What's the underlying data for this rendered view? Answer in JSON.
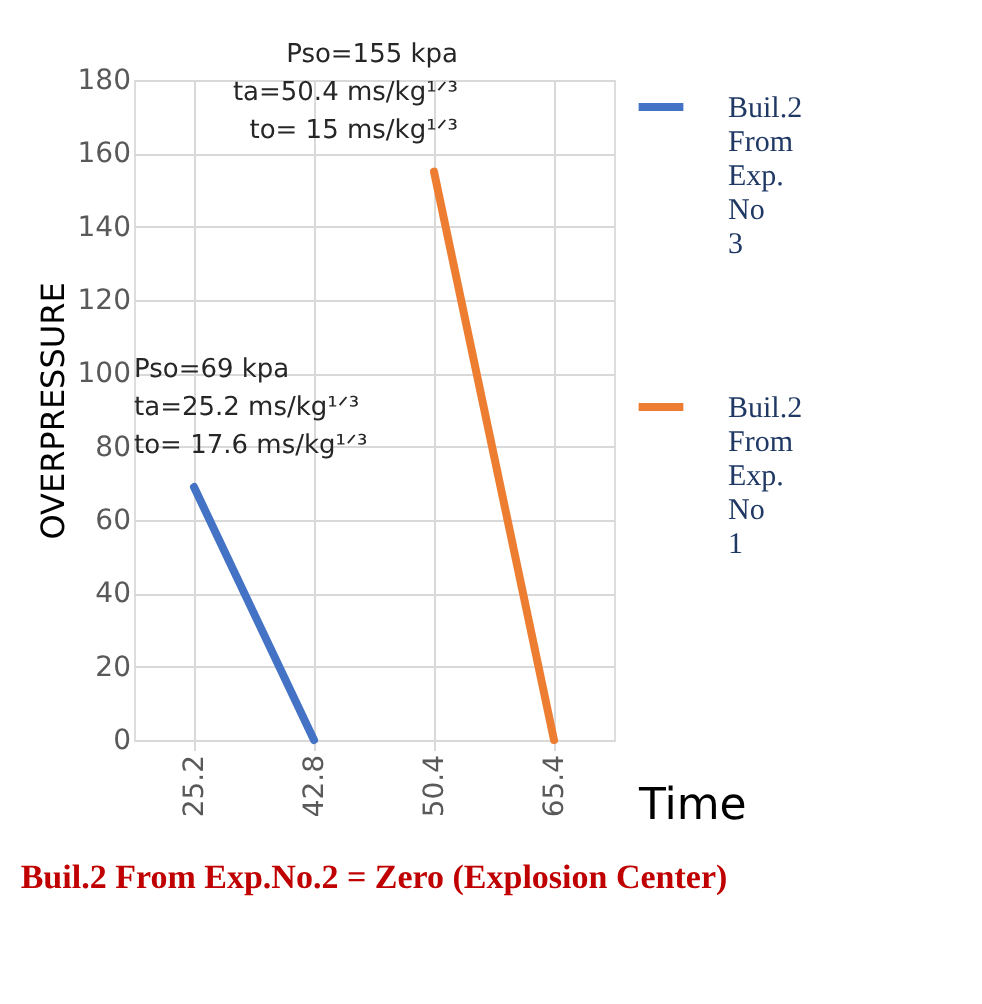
{
  "chart_data": {
    "type": "line",
    "xlabel": "Time",
    "ylabel": "OVERPRESSURE",
    "categories": [
      "25.2",
      "42.8",
      "50.4",
      "65.4"
    ],
    "series": [
      {
        "name": "Buil.2 From Exp. No 3",
        "color": "#4472c4",
        "values": [
          69,
          0,
          null,
          null
        ]
      },
      {
        "name": "Buil.2 From Exp. No 1",
        "color": "#ed7d31",
        "values": [
          null,
          null,
          155,
          0
        ]
      }
    ],
    "ylim": [
      0,
      180
    ],
    "yticks": [
      0,
      20,
      40,
      60,
      80,
      100,
      120,
      140,
      160,
      180
    ],
    "grid": true,
    "legend": "right",
    "marker": "none",
    "line_style": "solid",
    "annotations": [
      {
        "text": "Pso=69 kpa\nta=25.2 ms/kg¹ᐟ³\nto= 17.6 ms/kg¹ᐟ³",
        "x": "25.2",
        "y": 69
      },
      {
        "text": "Pso=155 kpa\nta=50.4 ms/kg¹ᐟ³\nto= 15 ms/kg¹ᐟ³",
        "x": "50.4",
        "y": 155
      },
      "Buil.2 From Exp.No.2 = Zero (Explosion Center)"
    ]
  }
}
